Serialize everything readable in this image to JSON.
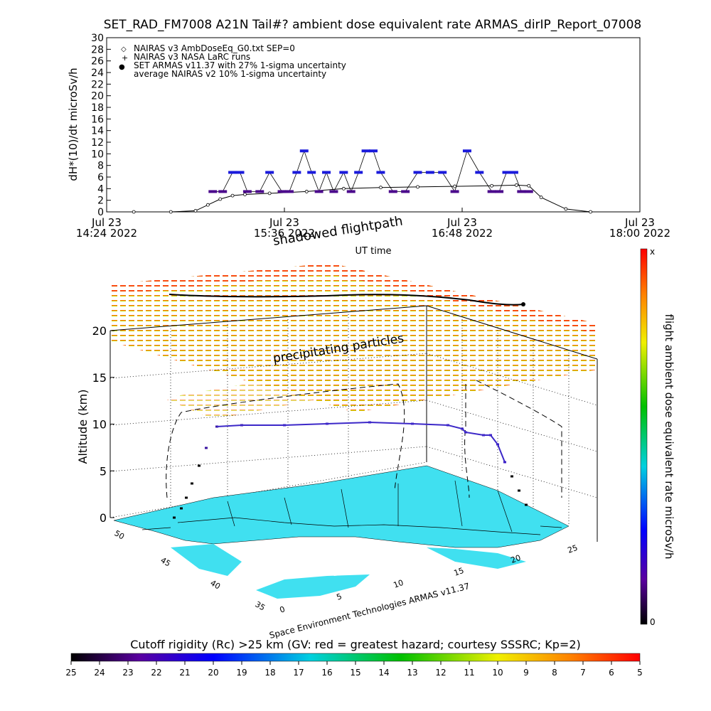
{
  "colors": {
    "armas": "#1a1adc",
    "armas_low": "#4b0a8c",
    "nairas": "#000000",
    "ground": "#40e0f0"
  },
  "header": {
    "title": "SET_RAD_FM7008  A21N Tail#? ambient dose equivalent rate ARMAS_dirIP_Report_07008"
  },
  "top_chart": {
    "ylabel": "dH*(10)/dt microSv/h",
    "yticks": [
      "0",
      "2",
      "4",
      "6",
      "8",
      "10",
      "12",
      "14",
      "16",
      "18",
      "20",
      "22",
      "24",
      "26",
      "28",
      "30"
    ],
    "xticks": [
      {
        "l1": "Jul 23",
        "l2": "14:24 2022"
      },
      {
        "l1": "Jul 23",
        "l2": "15:36 2022"
      },
      {
        "l1": "Jul 23",
        "l2": "16:48 2022"
      },
      {
        "l1": "Jul 23",
        "l2": "18:00 2022"
      }
    ],
    "xlabel": "UT time",
    "legend": [
      {
        "symbol": "◇",
        "text": "NAIRAS v3 AmbDoseEq_G0.txt SEP=0"
      },
      {
        "symbol": "+",
        "text": "NAIRAS v3 NASA LaRC runs"
      },
      {
        "symbol": "●",
        "text": "SET ARMAS v11.37 with 27% 1-sigma uncertainty"
      },
      {
        "symbol": "",
        "text": "average NAIRAS v2 10% 1-sigma uncertainty"
      }
    ]
  },
  "chart_data": [
    {
      "type": "scatter",
      "title": "SET_RAD_FM7008  A21N Tail#? ambient dose equivalent rate ARMAS_dirIP_Report_07008",
      "xlabel": "UT time",
      "ylabel": "dH*(10)/dt microSv/h",
      "xlim": [
        "2022-07-23 14:24",
        "2022-07-23 18:00"
      ],
      "ylim": [
        0,
        30
      ],
      "grid": false,
      "legend_position": "top-left",
      "series": [
        {
          "name": "NAIRAS v3 AmbDoseEq_G0.txt SEP=0",
          "x": [
            "14:35",
            "14:50",
            "15:00",
            "15:05",
            "15:10",
            "15:15",
            "15:20",
            "15:30",
            "15:45",
            "16:00",
            "16:15",
            "16:30",
            "16:45",
            "17:00",
            "17:10",
            "17:15",
            "17:20",
            "17:30",
            "17:40"
          ],
          "y": [
            0,
            0,
            0.2,
            1.2,
            2.2,
            2.8,
            3.0,
            3.2,
            3.5,
            4.0,
            4.2,
            4.3,
            4.4,
            4.5,
            4.6,
            4.5,
            2.5,
            0.5,
            0
          ]
        },
        {
          "name": "SET ARMAS v11.37 with 27% 1-sigma uncertainty",
          "x": [
            "15:07",
            "15:11",
            "15:15",
            "15:18",
            "15:21",
            "15:26",
            "15:30",
            "15:35",
            "15:38",
            "15:41",
            "15:44",
            "15:47",
            "15:50",
            "15:53",
            "15:56",
            "16:00",
            "16:03",
            "16:06",
            "16:09",
            "16:12",
            "16:15",
            "16:20",
            "16:25",
            "16:30",
            "16:35",
            "16:40",
            "16:45",
            "16:50",
            "16:55",
            "17:00",
            "17:03",
            "17:06",
            "17:09",
            "17:12",
            "17:15"
          ],
          "y": [
            3.5,
            3.5,
            6.8,
            6.8,
            3.5,
            3.5,
            6.8,
            3.5,
            3.5,
            6.8,
            10.5,
            6.8,
            3.5,
            6.8,
            3.5,
            6.8,
            3.5,
            6.8,
            10.5,
            10.5,
            6.8,
            3.5,
            3.5,
            6.8,
            6.8,
            6.8,
            3.5,
            10.5,
            6.8,
            3.5,
            3.5,
            6.8,
            6.8,
            3.5,
            3.5
          ]
        }
      ]
    },
    {
      "type": "scatter",
      "title": "",
      "ylabel": "Altitude (km)",
      "ylim": [
        0,
        20
      ],
      "yticks": [
        0,
        5,
        10,
        15,
        20
      ],
      "lat_ticks": [
        35,
        40,
        45,
        50
      ],
      "lon_ticks": [
        0,
        5,
        10,
        15,
        20,
        25
      ],
      "annotations": [
        "shadowed flightpath",
        "precipitating particles"
      ],
      "flight_altitude_km": [
        0,
        0.5,
        2,
        4,
        6,
        8,
        9.8,
        10,
        10,
        10,
        10,
        10,
        9.8,
        9.5,
        9.0,
        7,
        5,
        3,
        1,
        0
      ],
      "colorbar_right": {
        "label": "flight ambient dose equivalent rate microSv/h",
        "min_label": "0",
        "max_label": "x"
      },
      "colorbar_bottom": {
        "label": "Cutoff rigidity (Rc) >25 km (GV: red = greatest hazard; courtesy SSSRC; Kp=2)",
        "ticks": [
          "25",
          "24",
          "23",
          "22",
          "21",
          "20",
          "19",
          "18",
          "17",
          "16",
          "15",
          "14",
          "13",
          "12",
          "11",
          "10",
          "9",
          "8",
          "7",
          "6",
          "5"
        ]
      }
    }
  ],
  "lower_chart": {
    "ylabel": "Altitude (km)",
    "zticks": [
      "0",
      "5",
      "10",
      "15",
      "20"
    ],
    "lat_ticks": [
      "35",
      "40",
      "45",
      "50"
    ],
    "lon_ticks": [
      "0",
      "5",
      "10",
      "15",
      "20",
      "25"
    ],
    "annotation_shadow": "shadowed flightpath",
    "annotation_particles": "precipitating particles",
    "credit": "Space Environment Technologies ARMAS v11.37"
  },
  "colorbar_right": {
    "label": "flight ambient dose equivalent rate microSv/h",
    "min_label": "0",
    "max_label": "x"
  },
  "colorbar_bottom": {
    "label": "Cutoff rigidity (Rc) >25 km (GV: red = greatest hazard; courtesy SSSRC; Kp=2)",
    "ticks": [
      "25",
      "24",
      "23",
      "22",
      "21",
      "20",
      "19",
      "18",
      "17",
      "16",
      "15",
      "14",
      "13",
      "12",
      "11",
      "10",
      "9",
      "8",
      "7",
      "6",
      "5"
    ]
  }
}
